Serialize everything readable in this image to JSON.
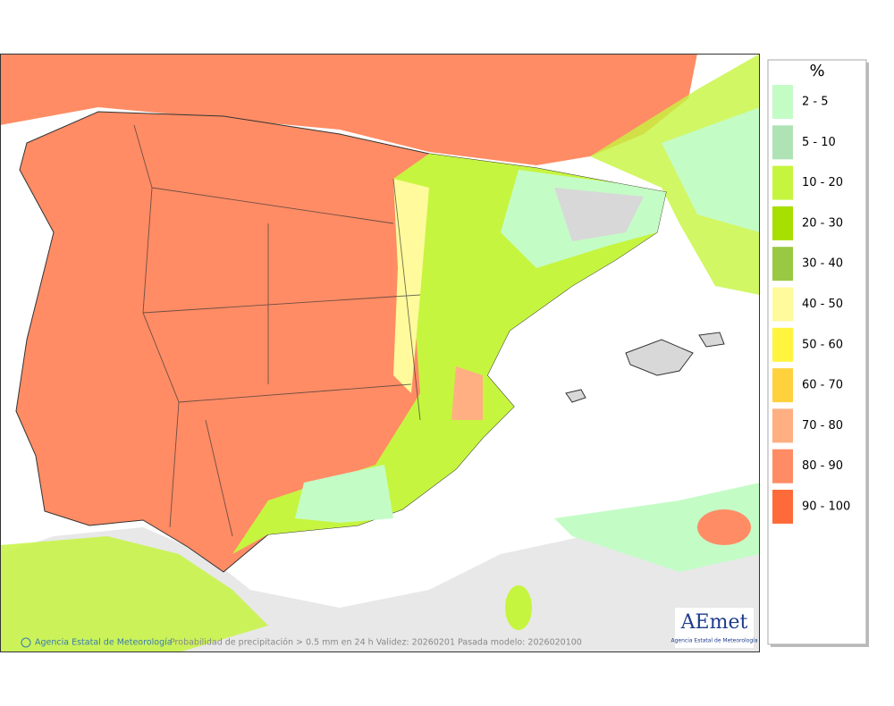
{
  "legend": {
    "title": "%",
    "items": [
      {
        "label": "2 - 5",
        "color": "#c4fcc6"
      },
      {
        "label": "5 - 10",
        "color": "#afe3b6"
      },
      {
        "label": "10 - 20",
        "color": "#c6f53f"
      },
      {
        "label": "20 - 30",
        "color": "#a6df00"
      },
      {
        "label": "30 - 40",
        "color": "#99c943"
      },
      {
        "label": "40 - 50",
        "color": "#fffa9c"
      },
      {
        "label": "50 - 60",
        "color": "#fff53e"
      },
      {
        "label": "60 - 70",
        "color": "#ffd13d"
      },
      {
        "label": "70 - 80",
        "color": "#ffaf82"
      },
      {
        "label": "80 - 90",
        "color": "#ff8c65"
      },
      {
        "label": "90 - 100",
        "color": "#ff6a3a"
      }
    ]
  },
  "footer": {
    "credit": "Agencia Estatal de Meteorología",
    "caption": "Probabilidad de precipitación > 0.5 mm en 24 h Validez: 20260201 Pasada modelo: 2026020100"
  },
  "logo": {
    "name": "AEmet",
    "subtitle": "Agencia Estatal de Meteorología"
  }
}
